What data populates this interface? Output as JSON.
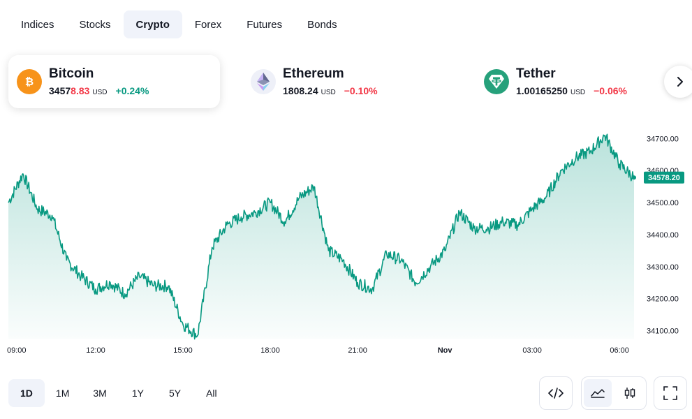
{
  "tabs": [
    {
      "label": "Indices",
      "active": false
    },
    {
      "label": "Stocks",
      "active": false
    },
    {
      "label": "Crypto",
      "active": true
    },
    {
      "label": "Forex",
      "active": false
    },
    {
      "label": "Futures",
      "active": false
    },
    {
      "label": "Bonds",
      "active": false
    }
  ],
  "coins": [
    {
      "name": "Bitcoin",
      "price_main": "3457",
      "price_highlight": "8.83",
      "currency": "USD",
      "change": "+0.24%",
      "direction": "up",
      "icon": "bitcoin-icon",
      "icon_color": "#f7931a"
    },
    {
      "name": "Ethereum",
      "price_main": "1808.24",
      "price_highlight": "",
      "currency": "USD",
      "change": "−0.10%",
      "direction": "down",
      "icon": "ethereum-icon",
      "icon_color": "#eef0f8"
    },
    {
      "name": "Tether",
      "price_main": "1.00165250",
      "price_highlight": "",
      "currency": "USD",
      "change": "−0.06%",
      "direction": "down",
      "icon": "tether-icon",
      "icon_color": "#26a17b"
    }
  ],
  "ranges": [
    {
      "label": "1D",
      "active": true
    },
    {
      "label": "1M",
      "active": false
    },
    {
      "label": "3M",
      "active": false
    },
    {
      "label": "1Y",
      "active": false
    },
    {
      "label": "5Y",
      "active": false
    },
    {
      "label": "All",
      "active": false
    }
  ],
  "colors": {
    "up": "#089981",
    "down": "#f23645",
    "line": "#089981"
  },
  "chart_data": {
    "type": "area",
    "series": [
      {
        "name": "Bitcoin",
        "x_hours": [
          0,
          0.5,
          1,
          1.5,
          2,
          2.5,
          3,
          3.5,
          4,
          4.5,
          5,
          5.5,
          6,
          6.5,
          7,
          7.5,
          8,
          8.5,
          9,
          9.5,
          10,
          10.5,
          11,
          11.5,
          12,
          12.5,
          13,
          13.5,
          14,
          14.5,
          15,
          15.5,
          16,
          16.5,
          17,
          17.5,
          18,
          18.5,
          19,
          19.5,
          20,
          20.5,
          21,
          21.5
        ],
        "values": [
          34500,
          34590,
          34480,
          34460,
          34320,
          34270,
          34230,
          34250,
          34215,
          34270,
          34240,
          34240,
          34120,
          34085,
          34360,
          34430,
          34455,
          34470,
          34500,
          34440,
          34515,
          34550,
          34350,
          34320,
          34250,
          34230,
          34340,
          34320,
          34250,
          34300,
          34350,
          34470,
          34420,
          34420,
          34440,
          34430,
          34480,
          34520,
          34600,
          34640,
          34660,
          34710,
          34620,
          34578.2
        ]
      }
    ],
    "x_tick_labels": [
      "09:00",
      "12:00",
      "15:00",
      "18:00",
      "21:00",
      "Nov",
      "03:00",
      "06:00"
    ],
    "y_tick_labels": [
      "34700.00",
      "34600.00",
      "34500.00",
      "34400.00",
      "34300.00",
      "34200.00",
      "34100.00"
    ],
    "ylim": [
      34075,
      34740
    ],
    "last_value_label": "34578.20",
    "grid": false
  }
}
